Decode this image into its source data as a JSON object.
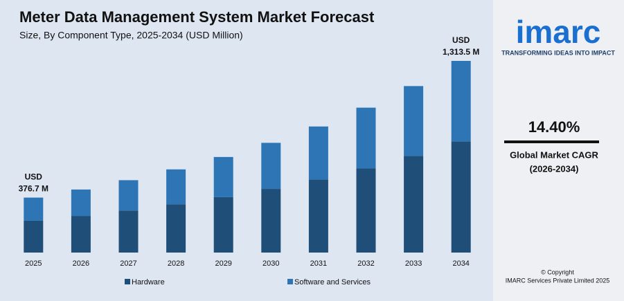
{
  "chart_data": {
    "type": "stacked-bar",
    "title": "Meter Data Management System Market Forecast",
    "subtitle": "Size, By Component Type, 2025-2034 (USD Million)",
    "categories": [
      "2025",
      "2026",
      "2027",
      "2028",
      "2029",
      "2030",
      "2031",
      "2032",
      "2033",
      "2034"
    ],
    "series": [
      {
        "name": "Hardware",
        "color": "#1f4e79",
        "values": [
          218.5,
          251,
          288,
          331,
          380,
          436,
          501,
          576,
          662,
          762
        ]
      },
      {
        "name": "Software and Services",
        "color": "#2e75b6",
        "values": [
          158.2,
          181,
          208,
          239,
          275,
          316,
          363,
          417,
          479,
          551.5
        ]
      }
    ],
    "annotations": [
      {
        "lines": [
          "USD",
          "376.7 M"
        ]
      },
      {
        "lines": [
          "USD",
          "1,313.5 M"
        ]
      }
    ],
    "ylim": [
      0,
      1313.5
    ]
  },
  "side_panel": {
    "logo": "imarc",
    "tagline": "TRANSFORMING IDEAS INTO IMPACT",
    "cagr": "14.40%",
    "cagr_label": "Global Market CAGR",
    "cagr_period": "(2026-2034)",
    "copyright": "© Copyright",
    "company": "IMARC Services Private Limited 2025"
  }
}
